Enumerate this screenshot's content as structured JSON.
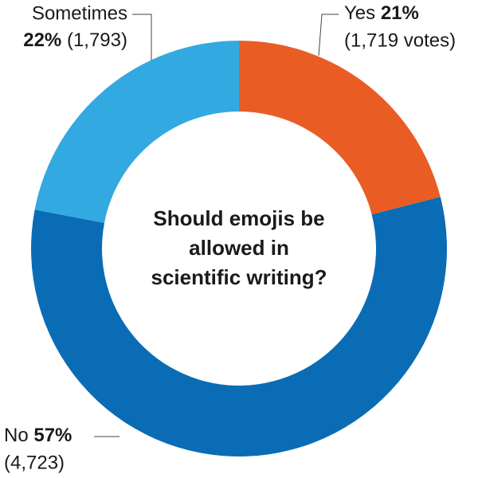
{
  "chart_data": {
    "type": "donut",
    "title": "Should emojis be allowed in scientific writing?",
    "categories": [
      "Yes",
      "No",
      "Sometimes"
    ],
    "values": [
      21,
      57,
      22
    ],
    "value_labels": [
      "21%",
      "57%",
      "22%"
    ],
    "counts": [
      1719,
      4723,
      1793
    ],
    "count_labels": [
      "(1,719 votes)",
      "(4,723)",
      "(1,793)"
    ],
    "colors": [
      "#e95d25",
      "#0a6cb5",
      "#33a9e2"
    ]
  }
}
